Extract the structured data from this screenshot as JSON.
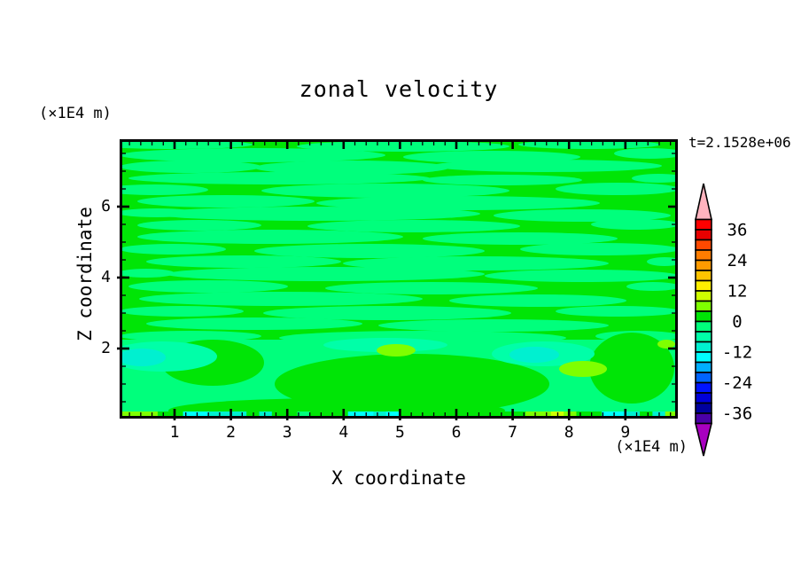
{
  "chart_data": {
    "type": "heatmap",
    "title": "zonal velocity",
    "time_annotation": "t=2.1528e+06",
    "xlabel": "X coordinate",
    "x_unit": "(×1E4 m)",
    "ylabel": "Z coordinate",
    "y_unit": "(×1E4 m)",
    "x_range": [
      0,
      9.9
    ],
    "y_range": [
      0,
      7.9
    ],
    "x_ticks": [
      1,
      2,
      3,
      4,
      5,
      6,
      7,
      8,
      9
    ],
    "x_minor_step": 0.2,
    "y_ticks": [
      2,
      4,
      6
    ],
    "y_minor_step": 0.5,
    "contour_levels": {
      "min": -40,
      "max": 40,
      "step": 4
    },
    "value_description": "Field dominated by the -4..0 (spring green) and 0..4 (green) bands forming horizontal streaks; below z≈2 broader cells with patches reaching -12..-8 (turquoise) and +4..+12 (chartreuse/yellow-green); thin mixed-color strip at z≈0.",
    "grid": "off",
    "legend_position": "right colorbar with over/under arrows",
    "pattern": {
      "key_colors": {
        "g": "#00E506",
        "s": "#00FF7C",
        "m": "#00FFA8",
        "t": "#00F0D0",
        "c": "#00FFFF",
        "h": "#7FFF00",
        "y": "#CFFF00"
      },
      "streaks": [
        [
          60,
          6,
          90,
          5
        ],
        [
          320,
          8,
          120,
          6
        ],
        [
          530,
          6,
          80,
          5
        ],
        [
          150,
          18,
          150,
          8
        ],
        [
          420,
          20,
          100,
          7
        ],
        [
          598,
          16,
          40,
          6
        ],
        [
          80,
          31,
          80,
          7
        ],
        [
          262,
          32,
          110,
          8
        ],
        [
          482,
          30,
          130,
          7
        ],
        [
          180,
          44,
          170,
          7
        ],
        [
          432,
          46,
          90,
          6
        ],
        [
          608,
          44,
          30,
          5
        ],
        [
          40,
          57,
          60,
          6
        ],
        [
          300,
          58,
          140,
          8
        ],
        [
          562,
          56,
          70,
          7
        ],
        [
          120,
          70,
          100,
          7
        ],
        [
          382,
          72,
          160,
          8
        ],
        [
          42,
          83,
          45,
          5
        ],
        [
          222,
          84,
          185,
          8
        ],
        [
          522,
          86,
          100,
          7
        ],
        [
          90,
          97,
          70,
          6
        ],
        [
          332,
          98,
          120,
          7
        ],
        [
          582,
          96,
          50,
          6
        ],
        [
          170,
          110,
          150,
          8
        ],
        [
          452,
          112,
          110,
          7
        ],
        [
          60,
          124,
          60,
          6
        ],
        [
          282,
          126,
          130,
          8
        ],
        [
          542,
          124,
          90,
          7
        ],
        [
          140,
          138,
          110,
          7
        ],
        [
          402,
          140,
          150,
          8
        ],
        [
          615,
          138,
          20,
          5
        ],
        [
          30,
          151,
          32,
          5
        ],
        [
          232,
          152,
          180,
          8
        ],
        [
          522,
          154,
          110,
          7
        ],
        [
          100,
          166,
          90,
          7
        ],
        [
          352,
          168,
          120,
          7
        ],
        [
          602,
          166,
          30,
          5
        ],
        [
          182,
          180,
          160,
          8
        ],
        [
          472,
          182,
          100,
          7
        ],
        [
          70,
          194,
          70,
          6
        ],
        [
          302,
          196,
          140,
          8
        ],
        [
          562,
          194,
          70,
          6
        ],
        [
          152,
          208,
          122,
          7
        ],
        [
          422,
          210,
          130,
          7
        ],
        [
          80,
          222,
          80,
          6
        ],
        [
          342,
          224,
          162,
          8
        ],
        [
          585,
          222,
          48,
          6
        ]
      ],
      "lower_band_y": [
        226,
        315
      ],
      "green_shapes": [
        [
          105,
          252,
          58,
          26
        ],
        [
          330,
          276,
          155,
          34
        ],
        [
          578,
          258,
          48,
          40
        ],
        [
          245,
          306,
          190,
          14
        ]
      ],
      "medium_halos": [
        [
          48,
          245,
          62,
          17
        ],
        [
          300,
          232,
          70,
          8
        ],
        [
          478,
          242,
          58,
          14
        ]
      ],
      "turquoise_blobs": [
        [
          25,
          246,
          27,
          10
        ],
        [
          468,
          243,
          28,
          9
        ]
      ],
      "chartreuse_spots": [
        [
          312,
          238,
          22,
          7
        ],
        [
          523,
          259,
          27,
          9
        ],
        [
          617,
          231,
          10,
          5
        ]
      ],
      "bottom_strip_cells": [
        "h",
        "h",
        "h",
        "g",
        "g",
        "c",
        "c",
        "t",
        "t",
        "t",
        "g",
        "t",
        "g",
        "g",
        "s",
        "g",
        "g",
        "g",
        "c",
        "c",
        "t",
        "c",
        "g",
        "g",
        "g",
        "g",
        "g",
        "g",
        "g",
        "g",
        "g",
        "g",
        "h",
        "h",
        "y",
        "h",
        "g",
        "g",
        "c",
        "c",
        "t",
        "g",
        "t",
        "h"
      ]
    }
  },
  "colorbar": {
    "min": -40,
    "max": 40,
    "step": 4,
    "labels": [
      36,
      24,
      12,
      0,
      -12,
      -24,
      -36
    ],
    "colors_top_to_bottom": [
      "#FF0000",
      "#E80000",
      "#FF4900",
      "#FF7D00",
      "#FF9B00",
      "#FFC400",
      "#FFF000",
      "#CFFF00",
      "#7FFF00",
      "#00E506",
      "#00FF7C",
      "#00FFA8",
      "#00F0D0",
      "#00FFFF",
      "#00AEFF",
      "#0064FF",
      "#0014FF",
      "#0000D8",
      "#00009E",
      "#4A00A8"
    ],
    "arrow_over_color": "#FFB3BE",
    "arrow_under_color": "#A800C0"
  },
  "text_color": "#000000"
}
